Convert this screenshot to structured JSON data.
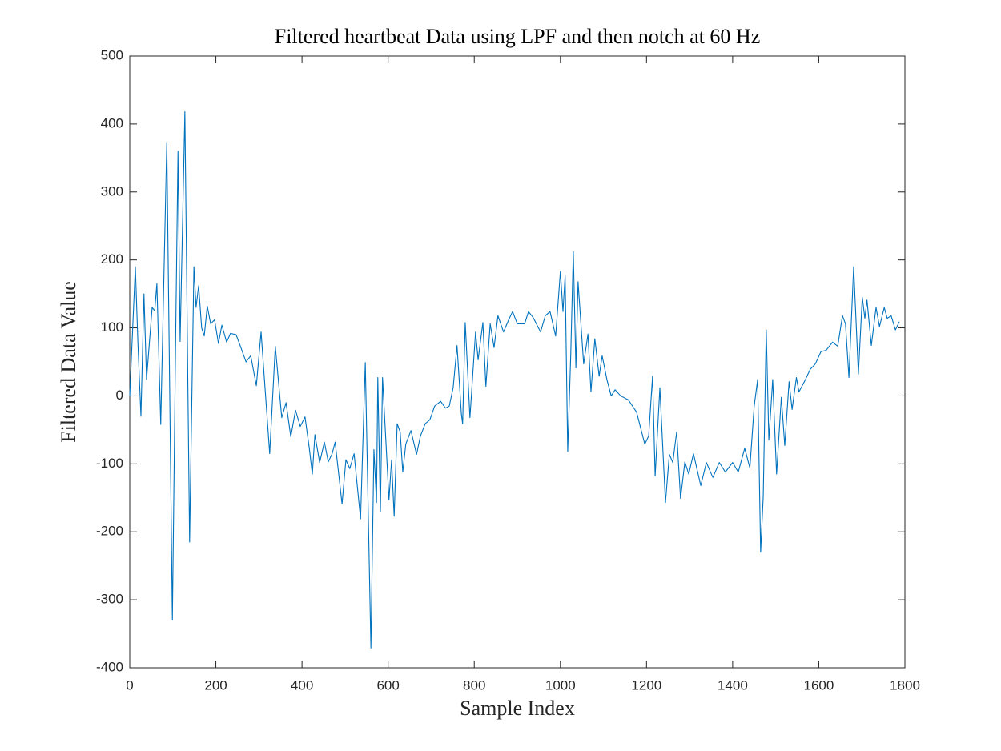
{
  "chart_data": {
    "type": "line",
    "title": "Filtered heartbeat Data using LPF and then notch at 60 Hz",
    "x_label": "Sample Index",
    "y_label": "Filtered Data Value",
    "xlim": [
      0,
      1800
    ],
    "xticks": [
      0,
      200,
      400,
      600,
      800,
      1000,
      1200,
      1400,
      1600,
      1800
    ],
    "ylim": [
      -400,
      500
    ],
    "yticks": [
      -400,
      -300,
      -200,
      -100,
      0,
      100,
      200,
      300,
      400,
      500
    ],
    "series": [
      {
        "color": "#0072bd",
        "x": [
          0,
          13,
          19,
          26,
          33,
          39,
          52,
          58,
          63,
          72,
          86,
          99,
          106,
          112,
          117,
          128,
          139,
          149,
          154,
          160,
          167,
          173,
          180,
          188,
          197,
          206,
          214,
          225,
          234,
          247,
          257,
          270,
          281,
          294,
          305,
          325,
          338,
          353,
          363,
          374,
          385,
          396,
          407,
          417,
          424,
          430,
          441,
          452,
          461,
          470,
          477,
          493,
          502,
          511,
          521,
          536,
          547,
          560,
          567,
          573,
          576,
          582,
          587,
          602,
          608,
          614,
          621,
          628,
          634,
          641,
          653,
          666,
          675,
          686,
          697,
          708,
          722,
          733,
          742,
          751,
          760,
          770,
          773,
          779,
          790,
          803,
          809,
          820,
          827,
          837,
          846,
          855,
          868,
          880,
          889,
          900,
          917,
          926,
          937,
          954,
          965,
          976,
          989,
          1000,
          1006,
          1011,
          1017,
          1024,
          1030,
          1036,
          1041,
          1054,
          1064,
          1071,
          1080,
          1090,
          1097,
          1108,
          1118,
          1127,
          1140,
          1158,
          1177,
          1196,
          1205,
          1214,
          1220,
          1231,
          1244,
          1253,
          1261,
          1270,
          1279,
          1289,
          1298,
          1309,
          1326,
          1339,
          1354,
          1369,
          1383,
          1400,
          1413,
          1428,
          1440,
          1450,
          1458,
          1465,
          1471,
          1478,
          1484,
          1493,
          1502,
          1513,
          1521,
          1531,
          1538,
          1548,
          1554,
          1569,
          1580,
          1592,
          1605,
          1617,
          1632,
          1644,
          1655,
          1662,
          1670,
          1681,
          1692,
          1701,
          1707,
          1712,
          1722,
          1733,
          1741,
          1752,
          1759,
          1768,
          1778,
          1787
        ],
        "values": [
          0,
          190,
          77,
          -30,
          150,
          24,
          130,
          125,
          165,
          -42,
          373,
          -330,
          53,
          360,
          80,
          418,
          -215,
          190,
          130,
          162,
          100,
          88,
          132,
          106,
          112,
          77,
          104,
          79,
          92,
          90,
          73,
          50,
          59,
          15,
          94,
          -85,
          73,
          -32,
          -10,
          -60,
          -21,
          -45,
          -31,
          -77,
          -115,
          -57,
          -98,
          -68,
          -97,
          -85,
          -68,
          -159,
          -94,
          -107,
          -85,
          -181,
          49,
          -371,
          -79,
          -157,
          27,
          -171,
          27,
          -153,
          -94,
          -177,
          -41,
          -53,
          -112,
          -71,
          -51,
          -86,
          -59,
          -41,
          -35,
          -15,
          -8,
          -18,
          -15,
          12,
          74,
          -26,
          -41,
          108,
          -32,
          94,
          53,
          108,
          14,
          106,
          71,
          118,
          94,
          112,
          124,
          106,
          106,
          124,
          115,
          94,
          118,
          124,
          88,
          183,
          124,
          177,
          -82,
          59,
          212,
          41,
          168,
          47,
          91,
          6,
          84,
          29,
          59,
          24,
          0,
          9,
          0,
          -6,
          -24,
          -71,
          -59,
          29,
          -118,
          12,
          -157,
          -86,
          -98,
          -53,
          -151,
          -97,
          -115,
          -85,
          -132,
          -98,
          -120,
          -98,
          -112,
          -98,
          -112,
          -77,
          -106,
          -15,
          24,
          -230,
          -148,
          97,
          -65,
          24,
          -115,
          -2,
          -73,
          21,
          -20,
          27,
          6,
          24,
          39,
          47,
          65,
          67,
          79,
          73,
          118,
          106,
          27,
          190,
          32,
          145,
          114,
          141,
          74,
          130,
          102,
          130,
          114,
          118,
          97,
          109
        ]
      }
    ]
  }
}
